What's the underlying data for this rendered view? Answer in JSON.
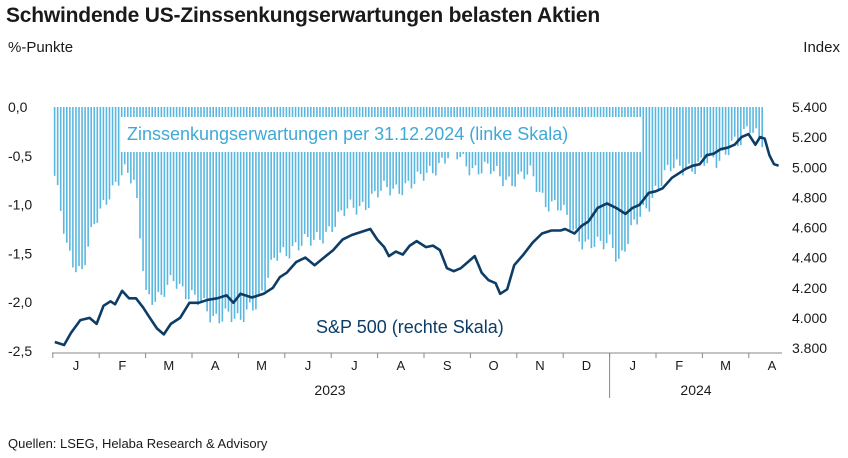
{
  "header": {
    "title": "Schwindende US-Zinssenkungserwartungen belasten Aktien",
    "left_unit": "%-Punkte",
    "right_unit": "Index"
  },
  "footer": {
    "source": "Quellen: LSEG, Helaba Research & Advisory"
  },
  "colors": {
    "bars": "#5ab8e0",
    "line": "#0d3d66",
    "bar_text": "#3fa9d6",
    "axis": "#888888"
  },
  "chart_data": {
    "type": "bar+line",
    "left_axis": {
      "ticks": [
        "0,0",
        "-0,5",
        "-1,0",
        "-1,5",
        "-2,0",
        "-2,5"
      ],
      "range": [
        -2.5,
        0.0
      ]
    },
    "right_axis": {
      "ticks": [
        "5.400",
        "5.200",
        "5.000",
        "4.800",
        "4.600",
        "4.400",
        "4.200",
        "4.000",
        "3.800"
      ],
      "range": [
        3800,
        5400
      ]
    },
    "x_axis": {
      "months": [
        "J",
        "F",
        "M",
        "A",
        "M",
        "J",
        "J",
        "A",
        "S",
        "O",
        "N",
        "D",
        "J",
        "F",
        "M",
        "A"
      ],
      "years": [
        "2023",
        "2024"
      ]
    },
    "annotations": {
      "bars": "Zinssenkungserwartungen per 31.12.2024 (linke Skala)",
      "line": "S&P 500 (rechte Skala)"
    },
    "series": [
      {
        "name": "Zinssenkungserwartungen per 31.12.2024 (linke Skala)",
        "axis": "left",
        "kind": "bar",
        "month_points": [
          [
            0,
            -0.7
          ],
          [
            0.3,
            -1.45
          ],
          [
            0.6,
            -1.7
          ],
          [
            0.9,
            -1.2
          ],
          [
            1.2,
            -0.85
          ],
          [
            1.5,
            -0.68
          ],
          [
            1.75,
            -0.8
          ],
          [
            2.0,
            -1.9
          ],
          [
            2.3,
            -2.0
          ],
          [
            2.6,
            -1.75
          ],
          [
            3.0,
            -1.95
          ],
          [
            3.4,
            -2.15
          ],
          [
            3.7,
            -2.1
          ],
          [
            4.0,
            -2.25
          ],
          [
            4.2,
            -2.05
          ],
          [
            4.5,
            -1.9
          ],
          [
            4.8,
            -1.55
          ],
          [
            5.2,
            -1.4
          ],
          [
            5.6,
            -1.4
          ],
          [
            6.0,
            -1.2
          ],
          [
            6.4,
            -1.05
          ],
          [
            6.8,
            -0.95
          ],
          [
            7.2,
            -0.85
          ],
          [
            7.5,
            -0.8
          ],
          [
            7.8,
            -0.8
          ],
          [
            8.2,
            -0.6
          ],
          [
            8.6,
            -0.48
          ],
          [
            9.0,
            -0.6
          ],
          [
            9.3,
            -0.65
          ],
          [
            9.6,
            -0.7
          ],
          [
            10.0,
            -0.75
          ],
          [
            10.3,
            -0.7
          ],
          [
            10.6,
            -0.95
          ],
          [
            10.9,
            -1.05
          ],
          [
            11.2,
            -1.25
          ],
          [
            11.5,
            -1.4
          ],
          [
            11.8,
            -1.45
          ],
          [
            12.0,
            -1.35
          ],
          [
            12.2,
            -1.55
          ],
          [
            12.5,
            -1.25
          ],
          [
            12.8,
            -1.0
          ],
          [
            13.0,
            -0.8
          ],
          [
            13.3,
            -0.65
          ],
          [
            13.6,
            -0.6
          ],
          [
            14.0,
            -0.6
          ],
          [
            14.3,
            -0.55
          ],
          [
            14.6,
            -0.35
          ],
          [
            14.8,
            -0.4
          ],
          [
            15.0,
            -0.22
          ],
          [
            15.3,
            -0.3
          ]
        ]
      },
      {
        "name": "S&P 500 (rechte Skala)",
        "axis": "right",
        "kind": "line",
        "month_points": [
          [
            0,
            3840
          ],
          [
            0.2,
            3820
          ],
          [
            0.35,
            3900
          ],
          [
            0.55,
            3985
          ],
          [
            0.75,
            4000
          ],
          [
            0.9,
            3960
          ],
          [
            1.05,
            4080
          ],
          [
            1.2,
            4110
          ],
          [
            1.3,
            4090
          ],
          [
            1.45,
            4180
          ],
          [
            1.6,
            4130
          ],
          [
            1.75,
            4130
          ],
          [
            1.9,
            4070
          ],
          [
            2.05,
            4000
          ],
          [
            2.2,
            3930
          ],
          [
            2.35,
            3890
          ],
          [
            2.5,
            3960
          ],
          [
            2.7,
            4000
          ],
          [
            2.9,
            4100
          ],
          [
            3.1,
            4100
          ],
          [
            3.3,
            4120
          ],
          [
            3.5,
            4130
          ],
          [
            3.7,
            4150
          ],
          [
            3.85,
            4100
          ],
          [
            4.0,
            4160
          ],
          [
            4.25,
            4135
          ],
          [
            4.5,
            4160
          ],
          [
            4.7,
            4200
          ],
          [
            4.85,
            4270
          ],
          [
            5.0,
            4300
          ],
          [
            5.2,
            4370
          ],
          [
            5.4,
            4400
          ],
          [
            5.6,
            4350
          ],
          [
            5.8,
            4400
          ],
          [
            6.0,
            4450
          ],
          [
            6.2,
            4520
          ],
          [
            6.4,
            4550
          ],
          [
            6.6,
            4570
          ],
          [
            6.8,
            4590
          ],
          [
            6.95,
            4520
          ],
          [
            7.1,
            4470
          ],
          [
            7.2,
            4410
          ],
          [
            7.35,
            4440
          ],
          [
            7.5,
            4420
          ],
          [
            7.65,
            4480
          ],
          [
            7.8,
            4510
          ],
          [
            8.0,
            4470
          ],
          [
            8.15,
            4480
          ],
          [
            8.3,
            4450
          ],
          [
            8.45,
            4330
          ],
          [
            8.6,
            4310
          ],
          [
            8.75,
            4330
          ],
          [
            8.9,
            4370
          ],
          [
            9.05,
            4410
          ],
          [
            9.2,
            4300
          ],
          [
            9.35,
            4250
          ],
          [
            9.5,
            4230
          ],
          [
            9.6,
            4160
          ],
          [
            9.75,
            4190
          ],
          [
            9.9,
            4350
          ],
          [
            10.1,
            4420
          ],
          [
            10.3,
            4500
          ],
          [
            10.5,
            4560
          ],
          [
            10.7,
            4580
          ],
          [
            10.9,
            4580
          ],
          [
            11.0,
            4590
          ],
          [
            11.2,
            4560
          ],
          [
            11.35,
            4610
          ],
          [
            11.5,
            4640
          ],
          [
            11.7,
            4730
          ],
          [
            11.9,
            4760
          ],
          [
            12.1,
            4730
          ],
          [
            12.3,
            4690
          ],
          [
            12.45,
            4730
          ],
          [
            12.6,
            4750
          ],
          [
            12.8,
            4830
          ],
          [
            12.95,
            4840
          ],
          [
            13.1,
            4860
          ],
          [
            13.3,
            4930
          ],
          [
            13.45,
            4960
          ],
          [
            13.6,
            4990
          ],
          [
            13.75,
            5010
          ],
          [
            13.9,
            5020
          ],
          [
            14.05,
            5080
          ],
          [
            14.2,
            5090
          ],
          [
            14.35,
            5120
          ],
          [
            14.5,
            5130
          ],
          [
            14.65,
            5150
          ],
          [
            14.8,
            5200
          ],
          [
            14.95,
            5220
          ],
          [
            15.1,
            5150
          ],
          [
            15.2,
            5200
          ],
          [
            15.3,
            5190
          ],
          [
            15.4,
            5080
          ],
          [
            15.5,
            5020
          ],
          [
            15.6,
            5010
          ]
        ]
      }
    ]
  }
}
